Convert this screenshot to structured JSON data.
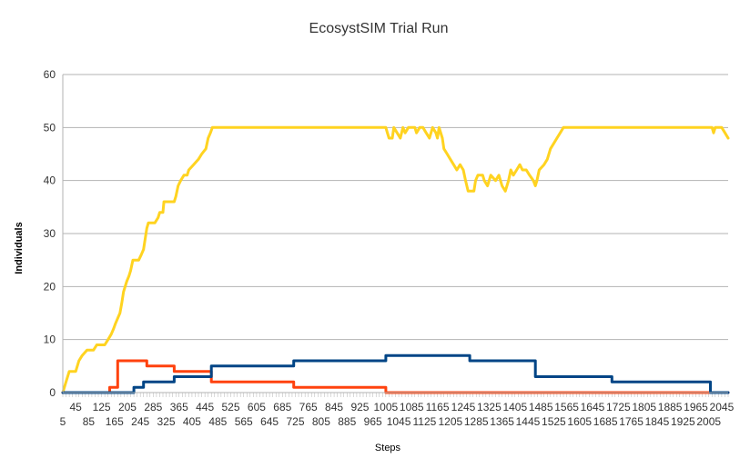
{
  "chart_data": {
    "type": "line",
    "title": "EcosystSIM Trial Run",
    "xlabel": "Steps",
    "ylabel": "Individuals",
    "ylim": [
      0,
      60
    ],
    "xlim": [
      5,
      2065
    ],
    "yticks": [
      0,
      10,
      20,
      30,
      40,
      50,
      60
    ],
    "grid": "horizontal",
    "legend": "none",
    "xtick_labels_row1": [
      "45",
      "125",
      "205",
      "285",
      "365",
      "445",
      "525",
      "605",
      "685",
      "765",
      "845",
      "925",
      "1005",
      "1085",
      "1165",
      "1245",
      "1325",
      "1405",
      "1485",
      "1565",
      "1645",
      "1725",
      "1805",
      "1885",
      "1965",
      "2045"
    ],
    "xtick_labels_row2": [
      "5",
      "85",
      "165",
      "245",
      "325",
      "405",
      "485",
      "565",
      "645",
      "725",
      "805",
      "885",
      "965",
      "1045",
      "1125",
      "1205",
      "1285",
      "1365",
      "1445",
      "1525",
      "1605",
      "1685",
      "1765",
      "1845",
      "1925",
      "2005"
    ],
    "series": [
      {
        "color": "#ffd320",
        "points": [
          [
            5,
            0
          ],
          [
            15,
            2
          ],
          [
            25,
            4
          ],
          [
            45,
            4
          ],
          [
            55,
            6
          ],
          [
            65,
            7
          ],
          [
            80,
            8
          ],
          [
            100,
            8
          ],
          [
            110,
            9
          ],
          [
            135,
            9
          ],
          [
            145,
            10
          ],
          [
            155,
            11
          ],
          [
            162,
            12
          ],
          [
            168,
            13
          ],
          [
            175,
            14
          ],
          [
            182,
            15
          ],
          [
            188,
            17
          ],
          [
            193,
            19
          ],
          [
            198,
            20
          ],
          [
            203,
            21
          ],
          [
            210,
            22
          ],
          [
            215,
            23
          ],
          [
            222,
            25
          ],
          [
            240,
            25
          ],
          [
            248,
            26
          ],
          [
            255,
            27
          ],
          [
            260,
            29
          ],
          [
            265,
            31
          ],
          [
            270,
            32
          ],
          [
            290,
            32
          ],
          [
            300,
            33
          ],
          [
            305,
            34
          ],
          [
            315,
            34
          ],
          [
            318,
            36
          ],
          [
            350,
            36
          ],
          [
            355,
            37
          ],
          [
            362,
            39
          ],
          [
            370,
            40
          ],
          [
            380,
            41
          ],
          [
            390,
            41
          ],
          [
            395,
            42
          ],
          [
            410,
            43
          ],
          [
            425,
            44
          ],
          [
            435,
            45
          ],
          [
            448,
            46
          ],
          [
            455,
            48
          ],
          [
            462,
            49
          ],
          [
            468,
            50
          ],
          [
            1005,
            50
          ],
          [
            1010,
            49
          ],
          [
            1015,
            48
          ],
          [
            1025,
            48
          ],
          [
            1030,
            50
          ],
          [
            1040,
            49
          ],
          [
            1050,
            48
          ],
          [
            1058,
            50
          ],
          [
            1065,
            49
          ],
          [
            1075,
            50
          ],
          [
            1095,
            50
          ],
          [
            1100,
            49
          ],
          [
            1110,
            50
          ],
          [
            1120,
            50
          ],
          [
            1130,
            49
          ],
          [
            1140,
            48
          ],
          [
            1150,
            50
          ],
          [
            1160,
            49
          ],
          [
            1165,
            48
          ],
          [
            1170,
            50
          ],
          [
            1180,
            48
          ],
          [
            1185,
            46
          ],
          [
            1195,
            45
          ],
          [
            1205,
            44
          ],
          [
            1215,
            43
          ],
          [
            1225,
            42
          ],
          [
            1235,
            43
          ],
          [
            1245,
            42
          ],
          [
            1252,
            40
          ],
          [
            1260,
            38
          ],
          [
            1278,
            38
          ],
          [
            1283,
            40
          ],
          [
            1290,
            41
          ],
          [
            1305,
            41
          ],
          [
            1310,
            40
          ],
          [
            1320,
            39
          ],
          [
            1330,
            41
          ],
          [
            1345,
            40
          ],
          [
            1355,
            41
          ],
          [
            1365,
            39
          ],
          [
            1375,
            38
          ],
          [
            1385,
            40
          ],
          [
            1392,
            42
          ],
          [
            1400,
            41
          ],
          [
            1410,
            42
          ],
          [
            1420,
            43
          ],
          [
            1428,
            42
          ],
          [
            1440,
            42
          ],
          [
            1450,
            41
          ],
          [
            1462,
            40
          ],
          [
            1468,
            39
          ],
          [
            1473,
            40
          ],
          [
            1480,
            42
          ],
          [
            1495,
            43
          ],
          [
            1505,
            44
          ],
          [
            1515,
            46
          ],
          [
            1525,
            47
          ],
          [
            1535,
            48
          ],
          [
            1545,
            49
          ],
          [
            1555,
            50
          ],
          [
            2015,
            50
          ],
          [
            2020,
            49
          ],
          [
            2025,
            50
          ],
          [
            2045,
            50
          ],
          [
            2055,
            49
          ],
          [
            2065,
            48
          ]
        ]
      },
      {
        "color": "#ff420e",
        "points": [
          [
            5,
            0
          ],
          [
            150,
            0
          ],
          [
            150,
            1
          ],
          [
            175,
            1
          ],
          [
            175,
            6
          ],
          [
            265,
            6
          ],
          [
            265,
            5
          ],
          [
            350,
            5
          ],
          [
            350,
            4
          ],
          [
            465,
            4
          ],
          [
            465,
            2
          ],
          [
            720,
            2
          ],
          [
            720,
            1
          ],
          [
            1005,
            1
          ],
          [
            1005,
            0
          ],
          [
            2065,
            0
          ]
        ]
      },
      {
        "color": "#004586",
        "points": [
          [
            5,
            0
          ],
          [
            225,
            0
          ],
          [
            225,
            1
          ],
          [
            255,
            1
          ],
          [
            255,
            2
          ],
          [
            350,
            2
          ],
          [
            350,
            3
          ],
          [
            465,
            3
          ],
          [
            465,
            5
          ],
          [
            720,
            5
          ],
          [
            720,
            6
          ],
          [
            1005,
            6
          ],
          [
            1005,
            7
          ],
          [
            1265,
            7
          ],
          [
            1265,
            6
          ],
          [
            1468,
            6
          ],
          [
            1468,
            3
          ],
          [
            1705,
            3
          ],
          [
            1705,
            2
          ],
          [
            2010,
            2
          ],
          [
            2010,
            0
          ],
          [
            2065,
            0
          ]
        ]
      }
    ]
  }
}
